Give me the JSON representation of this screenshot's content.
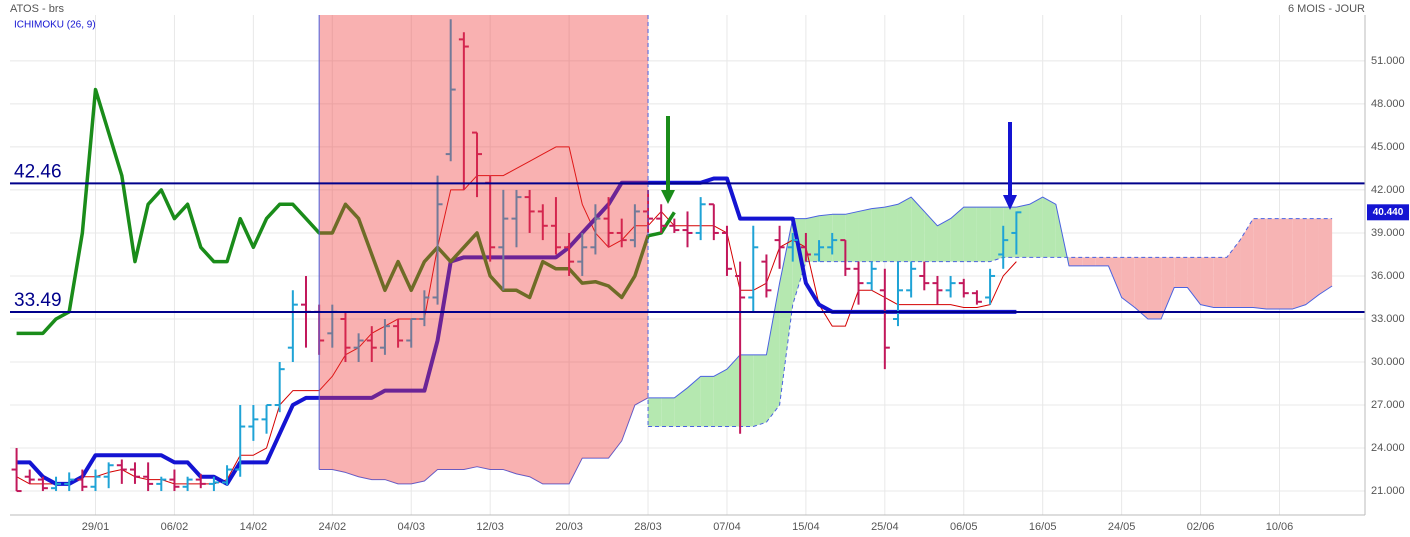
{
  "chart_data": {
    "type": "ohlc",
    "title": "ATOS - brs",
    "subtitle": "6 MOIS - JOUR",
    "indicator": "ICHIMOKU (26, 9)",
    "categories": [
      null,
      null,
      null,
      null,
      null,
      null,
      "29/01",
      null,
      null,
      null,
      null,
      null,
      "06/02",
      null,
      null,
      null,
      null,
      null,
      "14/02",
      null,
      null,
      null,
      null,
      null,
      "24/02",
      null,
      null,
      null,
      null,
      null,
      "04/03",
      null,
      null,
      null,
      null,
      null,
      "12/03",
      null,
      null,
      null,
      null,
      null,
      "20/03",
      null,
      null,
      null,
      null,
      null,
      "28/03",
      null,
      null,
      null,
      null,
      null,
      "07/04",
      null,
      null,
      null,
      null,
      null,
      "15/04",
      null,
      null,
      null,
      null,
      null,
      "25/04",
      null,
      null,
      null,
      null,
      null,
      "06/05",
      null,
      null,
      null,
      null,
      null,
      "16/05",
      null,
      null,
      null,
      null,
      null,
      "24/05",
      null,
      null,
      null,
      null,
      null,
      "02/06",
      null,
      null,
      null,
      null,
      null,
      "10/06",
      null,
      null,
      null,
      null,
      null,
      null
    ],
    "ylim": [
      19.33,
      54.2
    ],
    "yticks": [
      {
        "value": 21,
        "label": "21.000"
      },
      {
        "value": 24,
        "label": "24.000"
      },
      {
        "value": 27,
        "label": "27.000"
      },
      {
        "value": 30,
        "label": "30.000"
      },
      {
        "value": 33,
        "label": "33.000"
      },
      {
        "value": 36,
        "label": "36.000"
      },
      {
        "value": 39,
        "label": "39.000"
      },
      {
        "value": 42,
        "label": "42.000"
      },
      {
        "value": 45,
        "label": "45.000"
      },
      {
        "value": 48,
        "label": "48.000"
      },
      {
        "value": 51,
        "label": "51.000"
      }
    ],
    "grid": true,
    "up_color": "#1fa3d6",
    "down_color": "#c2185b",
    "open": [
      22.5,
      22,
      21.8,
      21.2,
      21.5,
      21.8,
      21.3,
      22,
      22.8,
      22.5,
      22,
      21.5,
      21.8,
      21.3,
      21.8,
      21.5,
      21.6,
      22.5,
      25.5,
      26,
      27,
      31,
      34,
      33.5,
      32,
      33,
      31,
      31.5,
      31,
      32.5,
      31.5,
      33,
      34.5,
      44.5,
      52.5,
      46,
      42.5,
      38,
      40,
      41.5,
      40.5,
      39.5,
      38,
      37,
      38,
      40,
      39,
      38.5,
      40.5,
      40,
      39.5,
      39.2,
      39,
      41,
      39,
      36,
      34.5,
      37,
      38.5,
      38,
      38,
      37.5,
      38,
      38.5,
      36.5,
      35.5,
      35,
      33,
      35,
      36,
      35.5,
      35,
      35.5,
      34.8,
      34.5,
      37.5,
      39,
      null,
      null,
      null,
      null,
      null,
      null,
      null,
      null,
      null,
      null,
      null,
      null,
      null,
      null,
      null,
      null,
      null,
      null,
      null,
      null,
      null,
      null,
      null,
      null,
      null,
      null
    ],
    "high": [
      24,
      22.5,
      22,
      22,
      22.3,
      22.5,
      22.5,
      23,
      23.2,
      23,
      23,
      22,
      22.5,
      22,
      22.2,
      22,
      22.8,
      27,
      27,
      27,
      30,
      35,
      36,
      34,
      34,
      33.5,
      32,
      32.5,
      33,
      33,
      33,
      35,
      43,
      53.9,
      53,
      46,
      43,
      42,
      42,
      42,
      41,
      41.5,
      39,
      39,
      41,
      41.5,
      40,
      41,
      42,
      41,
      40,
      40.5,
      41.5,
      41,
      39.5,
      37,
      39.5,
      37.5,
      39.5,
      39,
      39,
      38.5,
      39,
      38.5,
      37,
      37,
      36.5,
      37,
      37,
      37,
      36,
      36,
      35.8,
      35,
      36.5,
      39.5,
      40.5,
      null,
      null,
      null,
      null,
      null,
      null,
      null,
      null,
      null,
      null,
      null,
      null,
      null,
      null,
      null,
      null,
      null,
      null,
      null,
      null,
      null,
      null,
      null,
      null,
      null,
      null
    ],
    "low": [
      21,
      21.5,
      21,
      21,
      21,
      21,
      21,
      21.2,
      21.5,
      21.5,
      21,
      21,
      21,
      21,
      21.2,
      21,
      21.4,
      22,
      24.5,
      25,
      26.5,
      30,
      31,
      30.5,
      31,
      30,
      30,
      30,
      30.5,
      31,
      31,
      32.5,
      34,
      44,
      42,
      41.5,
      37,
      35,
      38,
      39,
      38.5,
      37.5,
      36,
      36,
      37.5,
      38,
      38,
      38,
      39,
      39,
      39,
      38,
      38.5,
      38.5,
      36,
      25,
      33.5,
      34.5,
      36.5,
      37,
      37,
      37,
      37.5,
      36,
      34,
      35,
      29.5,
      32.5,
      34.5,
      35,
      34,
      34.5,
      34.5,
      34,
      34,
      36.5,
      37.5,
      null,
      null,
      null,
      null,
      null,
      null,
      null,
      null,
      null,
      null,
      null,
      null,
      null,
      null,
      null,
      null,
      null,
      null,
      null,
      null,
      null,
      null,
      null,
      null,
      null,
      null
    ],
    "close": [
      21,
      21.8,
      21.2,
      21.5,
      21.8,
      21.3,
      22,
      22.8,
      22.5,
      22,
      21.5,
      21.8,
      21.3,
      21.8,
      21.5,
      21.6,
      22.5,
      25.5,
      26,
      27,
      29.5,
      34,
      33.5,
      31.5,
      33.5,
      31,
      31.5,
      31,
      32.5,
      31.5,
      33,
      34.5,
      41,
      49,
      52,
      44.5,
      38,
      40,
      41.5,
      40.5,
      39.5,
      38,
      37,
      38,
      40,
      39,
      38.5,
      40.5,
      40,
      39.5,
      39.2,
      39,
      41,
      39,
      36.5,
      34.5,
      38,
      35,
      38,
      38.5,
      37.5,
      38,
      38.5,
      36.5,
      35.5,
      36.5,
      31,
      35,
      36.5,
      35.5,
      35,
      35.5,
      34.8,
      34.2,
      36,
      38.5,
      40.44,
      null,
      null,
      null,
      null,
      null,
      null,
      null,
      null,
      null,
      null,
      null,
      null,
      null,
      null,
      null,
      null,
      null,
      null,
      null,
      null,
      null,
      null,
      null,
      null,
      null,
      null
    ],
    "lines": [
      {
        "style": "thin",
        "color": "#4a62e0",
        "values": [
          null,
          null,
          null,
          null,
          null,
          null,
          null,
          null,
          null,
          null,
          null,
          null,
          null,
          null,
          null,
          null,
          null,
          null,
          null,
          null,
          null,
          null,
          null,
          22.5,
          22.5,
          22.3,
          22,
          21.8,
          21.8,
          21.5,
          21.5,
          21.7,
          22.5,
          22.5,
          22.5,
          22.7,
          22.5,
          22.5,
          22.2,
          22,
          21.5,
          21.5,
          21.5,
          23.3,
          23.3,
          23.3,
          24.5,
          27,
          27.5,
          27.5,
          27.5,
          28.2,
          29,
          29,
          29.5,
          30.5,
          30.5,
          30.5,
          35.5,
          40,
          40,
          40.2,
          40.3,
          40.3,
          40.5,
          40.7,
          40.8,
          41,
          41.5,
          40.5,
          39.5,
          40,
          40.8,
          40.8,
          40.8,
          40.8,
          40.8,
          41,
          41.5,
          41,
          36.7,
          36.7,
          36.7,
          36.7,
          34.5,
          33.8,
          33,
          33,
          35.2,
          35.2,
          34,
          33.8,
          33.8,
          33.8,
          33.8,
          33.7,
          33.7,
          33.7,
          34,
          34.7,
          35.3,
          null,
          null
        ]
      },
      {
        "style": "dashed",
        "color": "#4a62e0",
        "values": [
          null,
          null,
          null,
          null,
          null,
          null,
          null,
          null,
          null,
          null,
          null,
          null,
          null,
          null,
          null,
          null,
          null,
          null,
          null,
          null,
          null,
          null,
          null,
          null,
          null,
          null,
          null,
          null,
          null,
          null,
          null,
          null,
          null,
          null,
          null,
          null,
          null,
          null,
          null,
          null,
          null,
          null,
          null,
          null,
          null,
          null,
          null,
          null,
          25.5,
          25.5,
          25.5,
          25.5,
          25.5,
          25.5,
          25.5,
          25.5,
          25.5,
          25.8,
          27,
          34,
          37,
          37,
          37,
          37,
          37,
          37,
          37,
          37,
          37,
          37,
          37,
          37,
          37,
          37,
          37,
          37.3,
          37.3,
          37.3,
          37.3,
          37.3,
          37.3,
          37.3,
          37.3,
          37.3,
          37.3,
          37.3,
          37.3,
          37.3,
          37.3,
          37.3,
          37.3,
          37.3,
          37.3,
          38.5,
          40,
          40,
          40,
          40,
          40,
          40,
          40,
          null,
          null
        ]
      },
      {
        "style": "thin",
        "color": "#d40000",
        "values": [
          22,
          21.5,
          21.5,
          21.5,
          21.5,
          22,
          22,
          22.3,
          22.5,
          22,
          21.8,
          21.8,
          21.5,
          21.5,
          21.5,
          21.5,
          21.8,
          23.5,
          23.5,
          24,
          27,
          28,
          28,
          28,
          29,
          30.5,
          31,
          32,
          32.5,
          33,
          33,
          33,
          38,
          42,
          42,
          43,
          43,
          43,
          43.5,
          44,
          44.5,
          45,
          45,
          41,
          39,
          38,
          38.5,
          39.5,
          39.5,
          40.5,
          39.5,
          39.5,
          39.5,
          39.5,
          39,
          35,
          35,
          35.5,
          38,
          38.5,
          38,
          34,
          32.5,
          32.5,
          35,
          35,
          34.5,
          34,
          34,
          34,
          34,
          34,
          33.8,
          33.8,
          34,
          36,
          37,
          null,
          null,
          null,
          null,
          null,
          null,
          null,
          null,
          null,
          null,
          null,
          null,
          null,
          null,
          null,
          null,
          null,
          null,
          null,
          null,
          null,
          null,
          null,
          null,
          null,
          null
        ]
      },
      {
        "style": "thick",
        "color": "#1414d2",
        "values": [
          23,
          23,
          22,
          21.5,
          21.5,
          22,
          23.5,
          23.5,
          23.5,
          23.5,
          23.5,
          23.5,
          23,
          23,
          22,
          22,
          21.5,
          23,
          23,
          23,
          25,
          27,
          27.5,
          27.5,
          27.5,
          27.5,
          27.5,
          27.5,
          28,
          28,
          28,
          28,
          31.5,
          37,
          37.3,
          37.3,
          37.3,
          37.3,
          37.3,
          37.3,
          37.3,
          37.3,
          38,
          39,
          40,
          41,
          42.5,
          42.5,
          42.5,
          42.5,
          42.5,
          42.5,
          42.5,
          42.8,
          42.8,
          40,
          40,
          40,
          40,
          40,
          35.5,
          34,
          33.5,
          33.5,
          33.5,
          33.5,
          33.5,
          33.5,
          33.5,
          33.5,
          33.5,
          33.5,
          33.5,
          33.5,
          33.5,
          33.5,
          33.5,
          null,
          null,
          null,
          null,
          null,
          null,
          null,
          null,
          null,
          null,
          null,
          null,
          null,
          null,
          null,
          null,
          null,
          null,
          null,
          null,
          null,
          null,
          null,
          null,
          null,
          null
        ]
      },
      {
        "style": "medium",
        "color": "#1a8c1a",
        "values": [
          32,
          32,
          32,
          33,
          33.5,
          39,
          49,
          46,
          43,
          37,
          41,
          42,
          40,
          41,
          38,
          37,
          37,
          40,
          38,
          40,
          41,
          41,
          40,
          39,
          39,
          41,
          40,
          37.5,
          35,
          37,
          35,
          37,
          38,
          37,
          38,
          39,
          36,
          35,
          35,
          34.5,
          37,
          36.5,
          36.5,
          35.5,
          35.6,
          35.3,
          34.5,
          36,
          38.8,
          39,
          40.44,
          null,
          null,
          null,
          null,
          null,
          null,
          null,
          null,
          null,
          null,
          null,
          null,
          null,
          null,
          null,
          null,
          null,
          null,
          null,
          null,
          null,
          null,
          null,
          null,
          null,
          null,
          null,
          null,
          null,
          null,
          null,
          null,
          null,
          null,
          null,
          null,
          null,
          null,
          null,
          null,
          null,
          null,
          null,
          null,
          null,
          null,
          null,
          null,
          null,
          null,
          null,
          null
        ]
      }
    ],
    "cloud_up_color": "#b5e8b0",
    "cloud_down_color": "#f7b4b4",
    "hlines": [
      42.46,
      33.49
    ],
    "hline_color": "#00008b",
    "last_price": {
      "value": 40.44,
      "label": "40.440"
    }
  }
}
